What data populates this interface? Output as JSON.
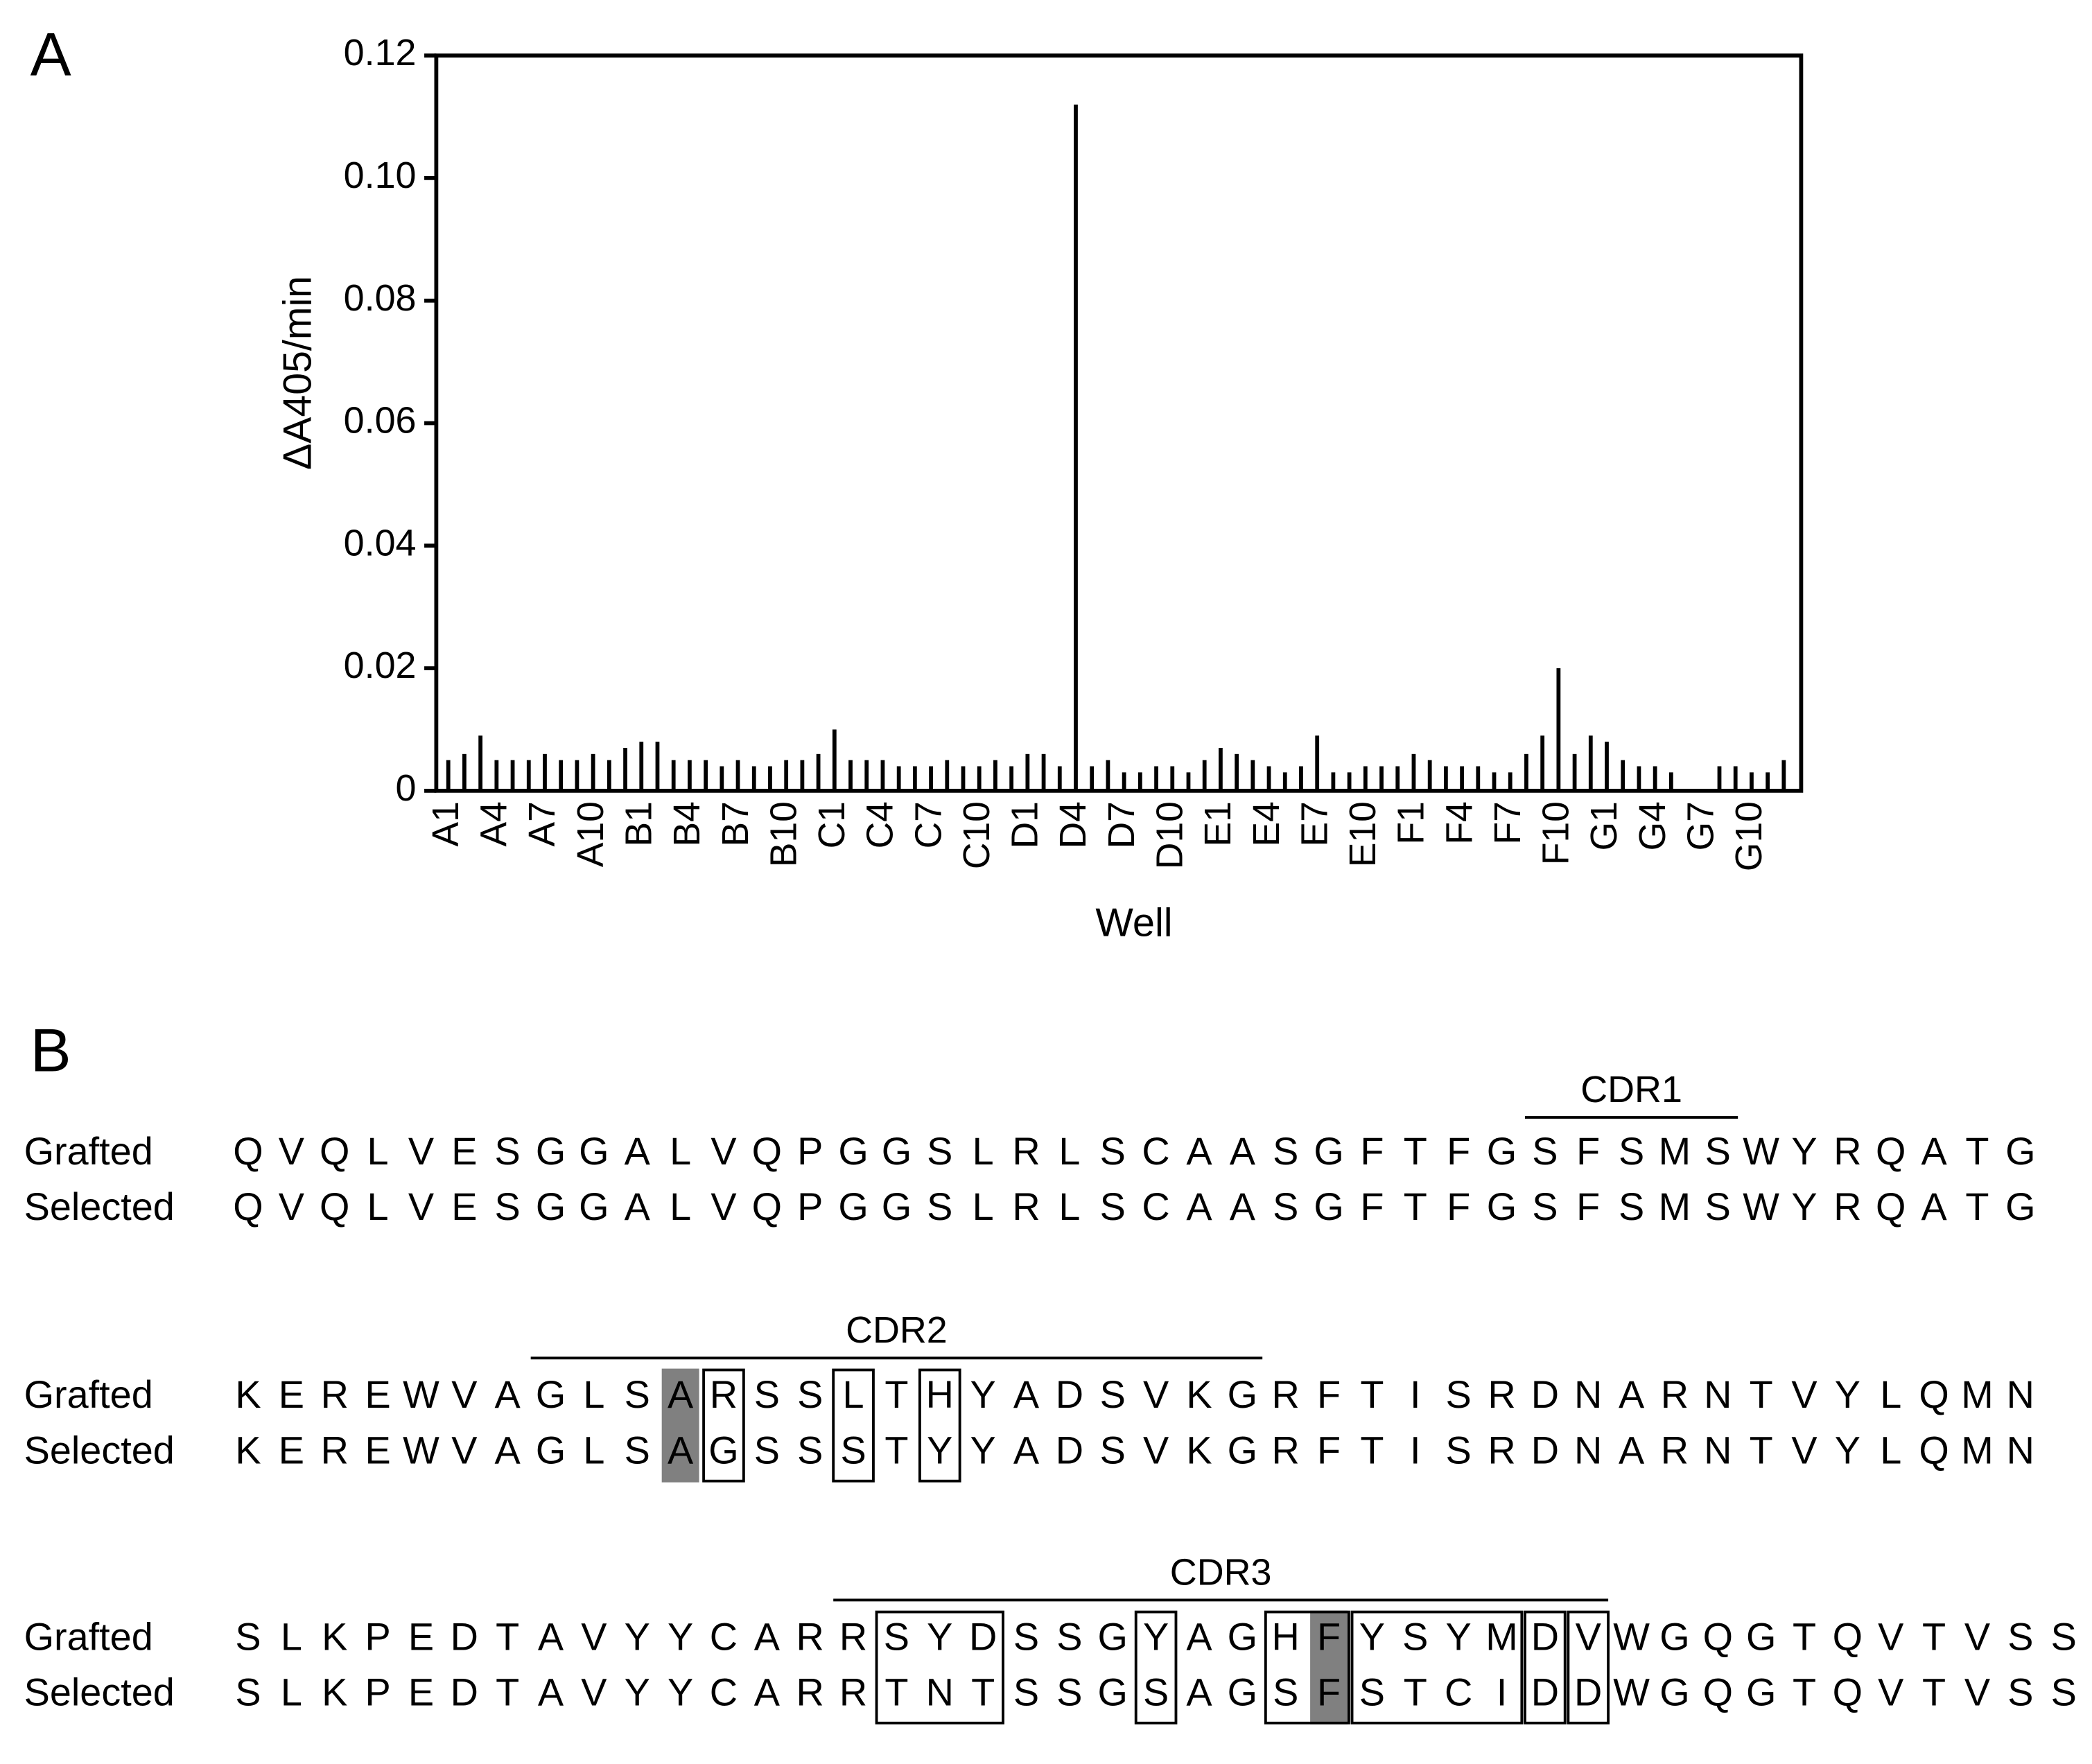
{
  "chart_data": {
    "type": "bar",
    "panel_label": "A",
    "ylabel": "ΔA405/min",
    "xlabel": "Well",
    "color": "#000000",
    "categories": [
      "A1",
      null,
      null,
      "A4",
      null,
      null,
      "A7",
      null,
      null,
      "A10",
      null,
      null,
      "B1",
      null,
      null,
      "B4",
      null,
      null,
      "B7",
      null,
      null,
      "B10",
      null,
      null,
      "C1",
      null,
      null,
      "C4",
      null,
      null,
      "C7",
      null,
      null,
      "C10",
      null,
      null,
      "D1",
      null,
      null,
      "D4",
      null,
      null,
      "D7",
      null,
      null,
      "D10",
      null,
      null,
      "E1",
      null,
      null,
      "E4",
      null,
      null,
      "E7",
      null,
      null,
      "E10",
      null,
      null,
      "F1",
      null,
      null,
      "F4",
      null,
      null,
      "F7",
      null,
      null,
      "F10",
      null,
      null,
      "G1",
      null,
      null,
      "G4",
      null,
      null,
      "G7",
      null,
      null,
      "G10",
      null,
      null
    ],
    "values": [
      0.005,
      0.006,
      0.009,
      0.005,
      0.005,
      0.005,
      0.006,
      0.005,
      0.005,
      0.006,
      0.005,
      0.007,
      0.008,
      0.008,
      0.005,
      0.005,
      0.005,
      0.004,
      0.005,
      0.004,
      0.004,
      0.005,
      0.005,
      0.006,
      0.01,
      0.005,
      0.005,
      0.005,
      0.004,
      0.004,
      0.004,
      0.005,
      0.004,
      0.004,
      0.005,
      0.004,
      0.006,
      0.006,
      0.004,
      0.112,
      0.004,
      0.005,
      0.003,
      0.003,
      0.004,
      0.004,
      0.003,
      0.005,
      0.007,
      0.006,
      0.005,
      0.004,
      0.003,
      0.004,
      0.009,
      0.003,
      0.003,
      0.004,
      0.004,
      0.004,
      0.006,
      0.005,
      0.004,
      0.004,
      0.004,
      0.003,
      0.003,
      0.006,
      0.009,
      0.02,
      0.006,
      0.009,
      0.008,
      0.005,
      0.004,
      0.004,
      0.003,
      0,
      0,
      0.004,
      0.004,
      0.003,
      0.003,
      0.005
    ],
    "ylim": [
      0,
      0.12
    ],
    "yticks": [
      0,
      0.02,
      0.04,
      0.06,
      0.08,
      {
        "value": 0.1,
        "label": "0.10"
      },
      0.12
    ]
  },
  "panel_b": {
    "panel_label": "B",
    "row_labels": {
      "grafted": "Grafted",
      "selected": "Selected"
    },
    "blocks": [
      {
        "cdr": "CDR1",
        "grafted": [
          "Q",
          "V",
          "Q",
          "L",
          "V",
          "E",
          "S",
          "G",
          "G",
          "A",
          "L",
          "V",
          "Q",
          "P",
          "G",
          "G",
          "S",
          "L",
          "R",
          "L",
          "S",
          "C",
          "A",
          "A",
          "S",
          "G",
          "F",
          "T",
          "F",
          "G",
          "S",
          "F",
          "S",
          "M",
          "S",
          "W",
          "Y",
          "R",
          "Q",
          "A",
          "T",
          "G"
        ],
        "selected": [
          "Q",
          "V",
          "Q",
          "L",
          "V",
          "E",
          "S",
          "G",
          "G",
          "A",
          "L",
          "V",
          "Q",
          "P",
          "G",
          "G",
          "S",
          "L",
          "R",
          "L",
          "S",
          "C",
          "A",
          "A",
          "S",
          "G",
          "F",
          "T",
          "F",
          "G",
          "S",
          "F",
          "S",
          "M",
          "S",
          "W",
          "Y",
          "R",
          "Q",
          "A",
          "T",
          "G"
        ]
      },
      {
        "cdr": "CDR2",
        "grafted": [
          "K",
          "E",
          "R",
          "E",
          "W",
          "V",
          "A",
          "G",
          "L",
          "S",
          "A",
          "R",
          "S",
          "S",
          "L",
          "T",
          "H",
          "Y",
          "A",
          "D",
          "S",
          "V",
          "K",
          "G",
          "R",
          "F",
          "T",
          "I",
          "S",
          "R",
          "D",
          "N",
          "A",
          "R",
          "N",
          "T",
          "V",
          "Y",
          "L",
          "Q",
          "M",
          "N"
        ],
        "selected": [
          "K",
          "E",
          "R",
          "E",
          "W",
          "V",
          "A",
          "G",
          "L",
          "S",
          "A",
          "G",
          "S",
          "S",
          "S",
          "T",
          "Y",
          "Y",
          "A",
          "D",
          "S",
          "V",
          "K",
          "G",
          "R",
          "F",
          "T",
          "I",
          "S",
          "R",
          "D",
          "N",
          "A",
          "R",
          "N",
          "T",
          "V",
          "Y",
          "L",
          "Q",
          "M",
          "N"
        ]
      },
      {
        "cdr": "CDR3",
        "grafted": [
          "S",
          "L",
          "K",
          "P",
          "E",
          "D",
          "T",
          "A",
          "V",
          "Y",
          "Y",
          "C",
          "A",
          "R",
          "R",
          "S",
          "Y",
          "D",
          "S",
          "S",
          "G",
          "Y",
          "A",
          "G",
          "H",
          "F",
          "Y",
          "S",
          "Y",
          "M",
          "D",
          "V",
          "W",
          "G",
          "Q",
          "G",
          "T",
          "Q",
          "V",
          "T",
          "V",
          "S",
          "S"
        ],
        "selected": [
          "S",
          "L",
          "K",
          "P",
          "E",
          "D",
          "T",
          "A",
          "V",
          "Y",
          "Y",
          "C",
          "A",
          "R",
          "R",
          "T",
          "N",
          "T",
          "S",
          "S",
          "G",
          "S",
          "A",
          "G",
          "S",
          "F",
          "S",
          "T",
          "C",
          "I",
          "D",
          "D",
          "W",
          "G",
          "Q",
          "G",
          "T",
          "Q",
          "V",
          "T",
          "V",
          "S",
          "S"
        ]
      }
    ]
  }
}
